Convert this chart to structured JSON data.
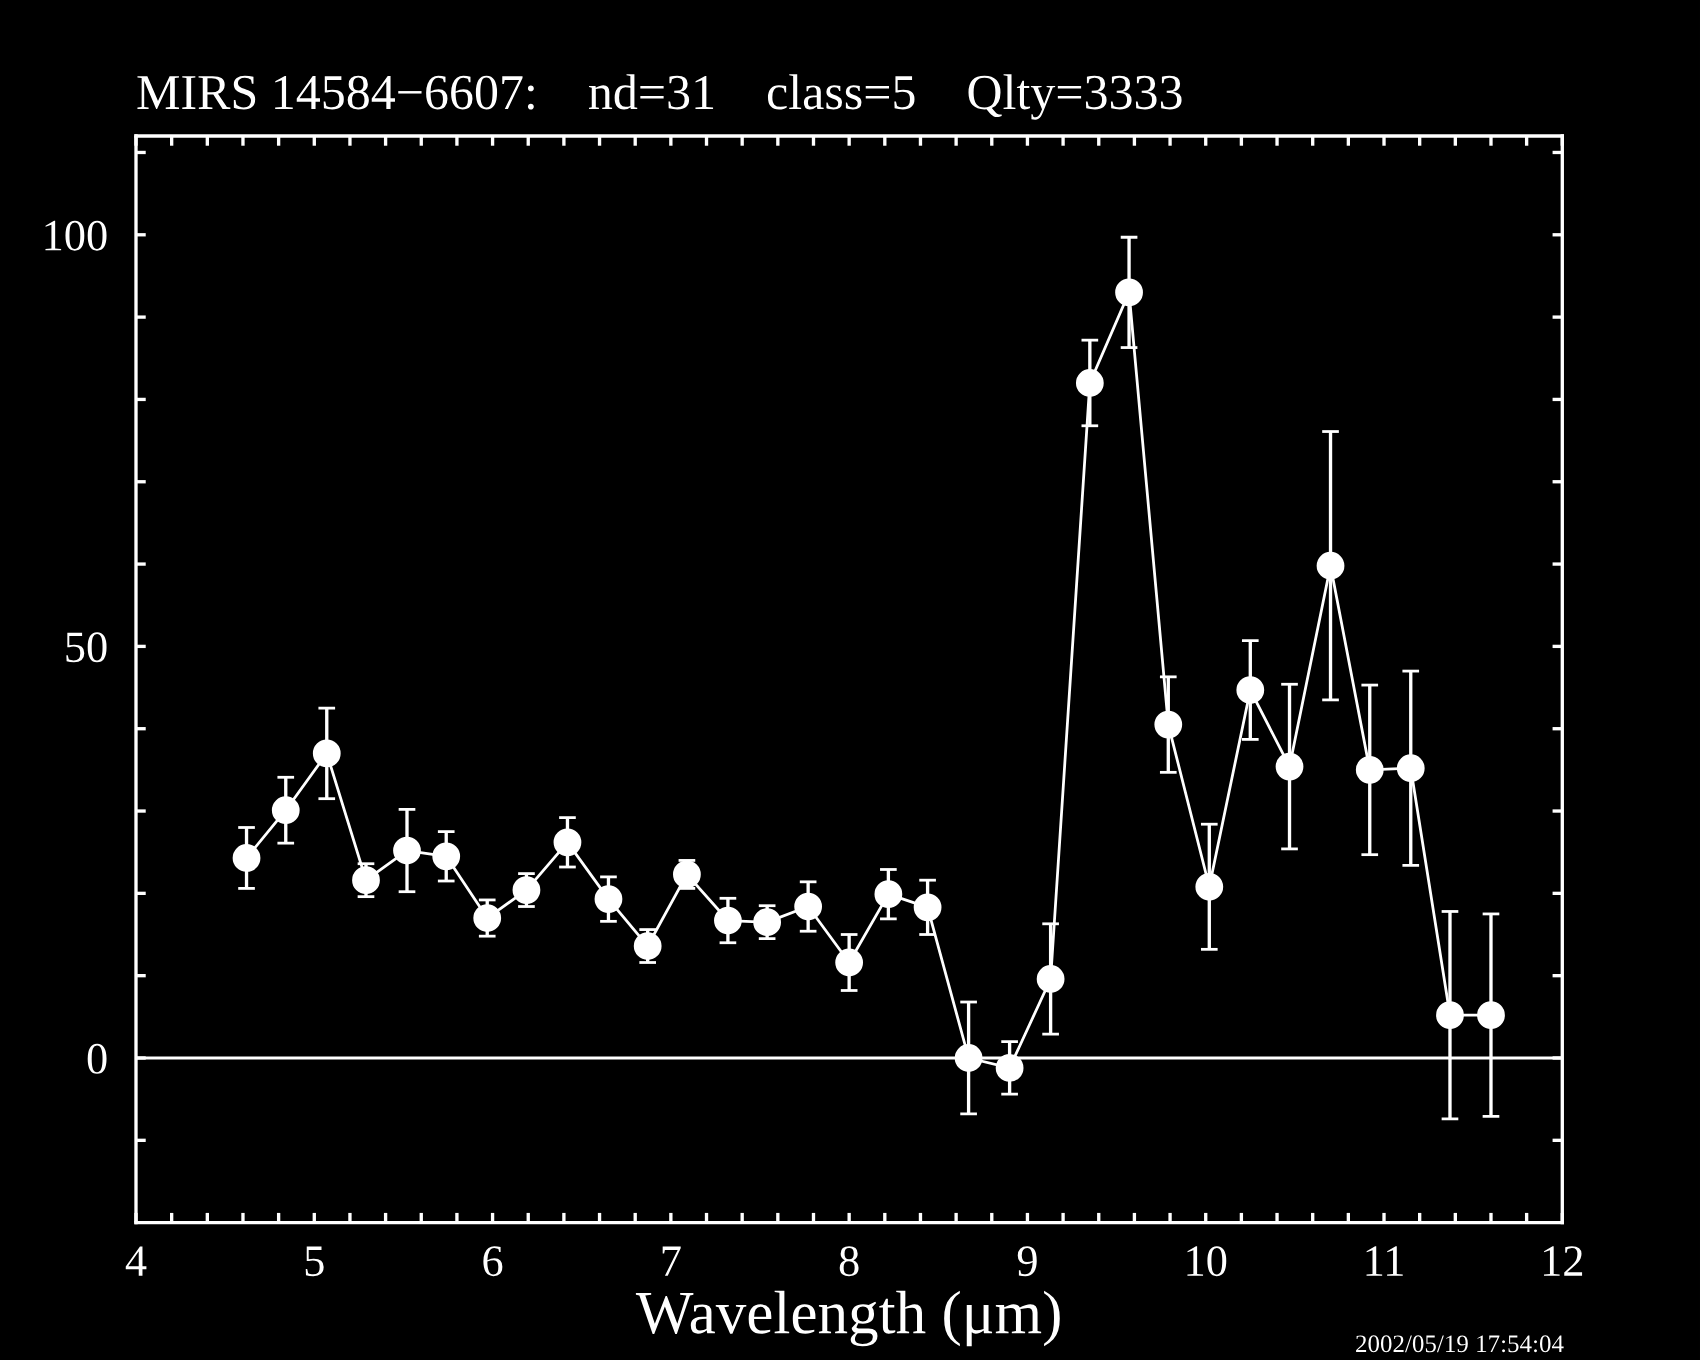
{
  "chart_data": {
    "type": "line",
    "title": "MIRS 14584−6607:    nd=31    class=5    Qlty=3333",
    "xlabel": "Wavelength (μm)",
    "x": [
      4.62,
      4.84,
      5.07,
      5.29,
      5.52,
      5.74,
      5.97,
      6.19,
      6.42,
      6.65,
      6.87,
      7.09,
      7.32,
      7.54,
      7.77,
      8.0,
      8.22,
      8.44,
      8.67,
      8.9,
      9.13,
      9.35,
      9.57,
      9.79,
      10.02,
      10.25,
      10.47,
      10.7,
      10.92,
      11.15,
      11.37,
      11.6
    ],
    "series": [
      {
        "color": "#ffffff",
        "values": [
          24.3,
          30.1,
          37.0,
          21.6,
          25.2,
          24.5,
          17.0,
          20.4,
          26.2,
          19.3,
          13.6,
          22.3,
          16.7,
          16.5,
          18.4,
          11.6,
          19.9,
          18.3,
          0,
          -1.2,
          9.6,
          82.0,
          93.0,
          40.5,
          20.8,
          44.7,
          35.4,
          59.8,
          35.0,
          35.2,
          5.2,
          5.2
        ],
        "errors": [
          3.7,
          4,
          5.5,
          2,
          5,
          3,
          2.2,
          2,
          3,
          2.7,
          2,
          1.7,
          2.7,
          2,
          3,
          3.4,
          3,
          3.3,
          6.8,
          3.2,
          6.7,
          5.2,
          6.7,
          5.8,
          7.6,
          6,
          10,
          16.3,
          10.3,
          11.8,
          12.6,
          12.3
        ]
      }
    ],
    "marker": "circle",
    "line_style": "solid",
    "xlim": [
      4,
      12
    ],
    "ylim": [
      -20,
      112
    ],
    "xticks": [
      4,
      {
        "value": 4.2,
        "label": null
      },
      {
        "value": 4.4,
        "label": null
      },
      {
        "value": 4.6,
        "label": null
      },
      {
        "value": 4.8,
        "label": null
      },
      5,
      {
        "value": 5.2,
        "label": null
      },
      {
        "value": 5.4,
        "label": null
      },
      {
        "value": 5.6,
        "label": null
      },
      {
        "value": 5.8,
        "label": null
      },
      6,
      {
        "value": 6.2,
        "label": null
      },
      {
        "value": 6.4,
        "label": null
      },
      {
        "value": 6.6,
        "label": null
      },
      {
        "value": 6.8,
        "label": null
      },
      7,
      {
        "value": 7.2,
        "label": null
      },
      {
        "value": 7.4,
        "label": null
      },
      {
        "value": 7.6,
        "label": null
      },
      {
        "value": 7.8,
        "label": null
      },
      8,
      {
        "value": 8.2,
        "label": null
      },
      {
        "value": 8.4,
        "label": null
      },
      {
        "value": 8.6,
        "label": null
      },
      {
        "value": 8.8,
        "label": null
      },
      9,
      {
        "value": 9.2,
        "label": null
      },
      {
        "value": 9.4,
        "label": null
      },
      {
        "value": 9.6,
        "label": null
      },
      {
        "value": 9.8,
        "label": null
      },
      10,
      {
        "value": 10.2,
        "label": null
      },
      {
        "value": 10.4,
        "label": null
      },
      {
        "value": 10.6,
        "label": null
      },
      {
        "value": 10.8,
        "label": null
      },
      11,
      {
        "value": 11.2,
        "label": null
      },
      {
        "value": 11.4,
        "label": null
      },
      {
        "value": 11.6,
        "label": null
      },
      {
        "value": 11.8,
        "label": null
      },
      12
    ],
    "yticks": [
      {
        "value": -10,
        "label": null
      },
      0,
      {
        "value": 10,
        "label": null
      },
      {
        "value": 20,
        "label": null
      },
      {
        "value": 30,
        "label": null
      },
      {
        "value": 40,
        "label": null
      },
      50,
      {
        "value": 60,
        "label": null
      },
      {
        "value": 70,
        "label": null
      },
      {
        "value": 80,
        "label": null
      },
      {
        "value": 90,
        "label": null
      },
      100,
      {
        "value": 110,
        "label": null
      }
    ],
    "ref_lines": [
      {
        "axis": "y",
        "value": 0,
        "color": "#ffffff"
      }
    ],
    "grid": false,
    "legend": false,
    "annotations": [
      "2002/05/19 17:54:04"
    ]
  }
}
